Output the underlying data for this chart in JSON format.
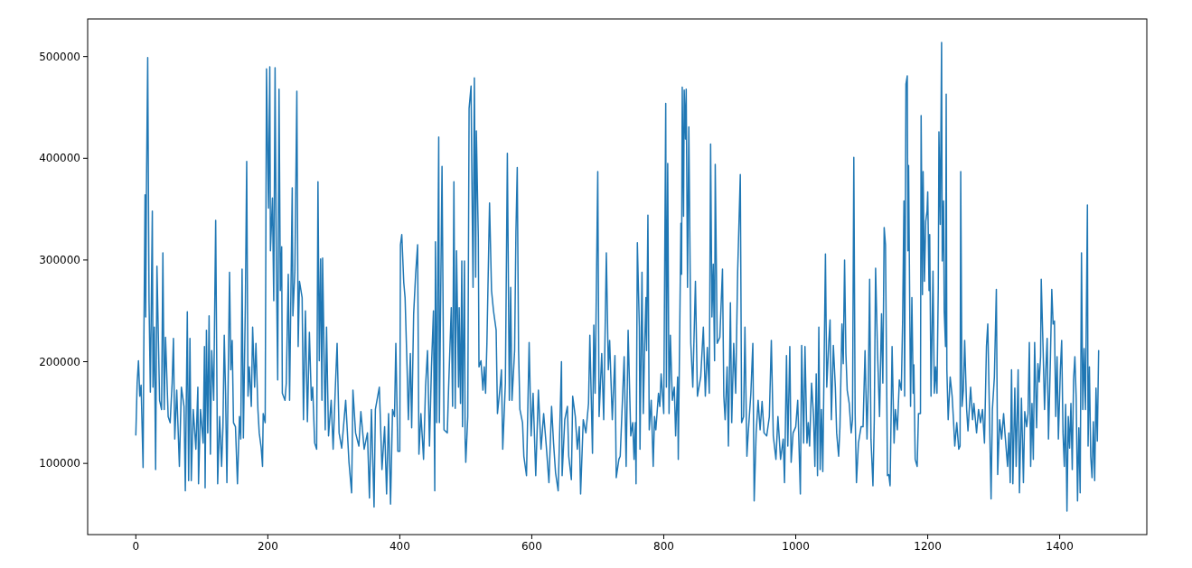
{
  "chart_data": {
    "type": "line",
    "color": "#1f77b4",
    "xlim": [
      -73,
      1532
    ],
    "ylim": [
      30000,
      537000
    ],
    "xticks": [
      0,
      200,
      400,
      600,
      800,
      1000,
      1200,
      1400
    ],
    "yticks": [
      100000,
      200000,
      300000,
      400000,
      500000
    ],
    "x": [
      0,
      2,
      4,
      6,
      8,
      11,
      12,
      14,
      15,
      16,
      18,
      20,
      22,
      25,
      26,
      28,
      30,
      32,
      36,
      39,
      41,
      43,
      45,
      49,
      52,
      55,
      57,
      59,
      62,
      66,
      69,
      73,
      75,
      78,
      80,
      82,
      84,
      87,
      91,
      94,
      95,
      98,
      102,
      104,
      105,
      107,
      109,
      111,
      113,
      115,
      118,
      121,
      124,
      127,
      130,
      132,
      134,
      136,
      138,
      142,
      144,
      146,
      148,
      151,
      154,
      157,
      159,
      161,
      163,
      166,
      168,
      170,
      172,
      175,
      177,
      180,
      182,
      185,
      187,
      190,
      192,
      193,
      196,
      198,
      201,
      203,
      204,
      207,
      209,
      211,
      213,
      215,
      217,
      219,
      221,
      222,
      226,
      228,
      231,
      233,
      237,
      238,
      241,
      244,
      246,
      248,
      252,
      254,
      257,
      260,
      263,
      266,
      268,
      271,
      274,
      276,
      278,
      280,
      282,
      283,
      287,
      289,
      292,
      296,
      299,
      302,
      305,
      308,
      312,
      318,
      323,
      327,
      329,
      333,
      338,
      341,
      346,
      351,
      354,
      357,
      361,
      363,
      369,
      373,
      377,
      380,
      383,
      386,
      389,
      392,
      394,
      397,
      400,
      401,
      403,
      406,
      408,
      411,
      413,
      416,
      418,
      421,
      424,
      427,
      429,
      432,
      436,
      439,
      442,
      445,
      448,
      451,
      453,
      454,
      456,
      459,
      460,
      464,
      467,
      472,
      474,
      478,
      480,
      482,
      484,
      486,
      489,
      490,
      492,
      494,
      495,
      498,
      499,
      500,
      503,
      505,
      508,
      509,
      511,
      513,
      515,
      516,
      519,
      520,
      523,
      526,
      528,
      530,
      532,
      536,
      539,
      542,
      546,
      548,
      552,
      554,
      556,
      560,
      563,
      566,
      568,
      570,
      574,
      576,
      578,
      580,
      582,
      586,
      588,
      592,
      596,
      599,
      602,
      606,
      610,
      614,
      618,
      622,
      626,
      630,
      633,
      636,
      640,
      645,
      646,
      650,
      654,
      656,
      660,
      662,
      666,
      669,
      672,
      674,
      678,
      682,
      686,
      688,
      692,
      694,
      696,
      700,
      702,
      706,
      709,
      713,
      716,
      718,
      722,
      726,
      728,
      732,
      734,
      738,
      740,
      743,
      746,
      750,
      753,
      755,
      757,
      758,
      760,
      763,
      764,
      767,
      769,
      771,
      773,
      774,
      776,
      778,
      781,
      784,
      786,
      788,
      792,
      794,
      796,
      800,
      803,
      804,
      806,
      808,
      810,
      813,
      816,
      818,
      821,
      822,
      826,
      827,
      828,
      830,
      831,
      833,
      834,
      836,
      838,
      841,
      844,
      848,
      851,
      856,
      860,
      863,
      866,
      869,
      871,
      873,
      875,
      877,
      878,
      881,
      885,
      889,
      891,
      893,
      896,
      898,
      901,
      903,
      906,
      909,
      912,
      916,
      918,
      921,
      923,
      926,
      928,
      932,
      935,
      937,
      940,
      943,
      946,
      949,
      952,
      956,
      960,
      963,
      966,
      970,
      973,
      977,
      981,
      983,
      986,
      988,
      991,
      993,
      996,
      1000,
      1003,
      1007,
      1009,
      1012,
      1014,
      1017,
      1019,
      1021,
      1024,
      1027,
      1029,
      1031,
      1033,
      1035,
      1037,
      1039,
      1041,
      1045,
      1047,
      1050,
      1052,
      1054,
      1057,
      1060,
      1062,
      1065,
      1067,
      1070,
      1072,
      1074,
      1076,
      1078,
      1081,
      1084,
      1086,
      1088,
      1090,
      1092,
      1095,
      1099,
      1102,
      1105,
      1108,
      1110,
      1112,
      1114,
      1117,
      1119,
      1121,
      1124,
      1127,
      1130,
      1132,
      1134,
      1136,
      1139,
      1141,
      1143,
      1146,
      1149,
      1151,
      1154,
      1157,
      1160,
      1162,
      1164,
      1165,
      1167,
      1169,
      1170,
      1171,
      1174,
      1176,
      1178,
      1179,
      1181,
      1184,
      1186,
      1189,
      1190,
      1192,
      1193,
      1195,
      1197,
      1199,
      1200,
      1202,
      1203,
      1205,
      1208,
      1210,
      1212,
      1214,
      1216,
      1217,
      1219,
      1221,
      1222,
      1224,
      1225,
      1227,
      1228,
      1229,
      1231,
      1234,
      1237,
      1239,
      1241,
      1244,
      1247,
      1249,
      1250,
      1252,
      1254,
      1256,
      1259,
      1261,
      1265,
      1268,
      1270,
      1274,
      1277,
      1280,
      1283,
      1286,
      1289,
      1291,
      1296,
      1298,
      1301,
      1304,
      1306,
      1309,
      1312,
      1315,
      1317,
      1321,
      1323,
      1325,
      1327,
      1329,
      1332,
      1334,
      1337,
      1339,
      1342,
      1345,
      1347,
      1350,
      1352,
      1354,
      1356,
      1358,
      1360,
      1362,
      1365,
      1367,
      1369,
      1371,
      1372,
      1375,
      1377,
      1379,
      1381,
      1383,
      1386,
      1388,
      1390,
      1392,
      1394,
      1396,
      1398,
      1401,
      1403,
      1405,
      1407,
      1409,
      1411,
      1413,
      1415,
      1417,
      1419,
      1421,
      1423,
      1425,
      1427,
      1429,
      1431,
      1433,
      1435,
      1437,
      1439,
      1442,
      1443,
      1445,
      1447,
      1449,
      1451,
      1453,
      1455,
      1457,
      1459
    ],
    "values": [
      128000,
      179000,
      201000,
      166000,
      177000,
      96000,
      205000,
      364000,
      244000,
      364000,
      499000,
      260000,
      170000,
      348000,
      175000,
      234000,
      94000,
      294000,
      162000,
      153000,
      307000,
      153000,
      224000,
      146000,
      140000,
      179000,
      223000,
      124000,
      172000,
      97000,
      175000,
      156000,
      73000,
      249000,
      83000,
      223000,
      83000,
      153000,
      114000,
      175000,
      80000,
      153000,
      120000,
      215000,
      76000,
      231000,
      130000,
      245000,
      109000,
      211000,
      162000,
      339000,
      80000,
      146000,
      97000,
      136000,
      226000,
      169000,
      81000,
      288000,
      192000,
      221000,
      140000,
      136000,
      80000,
      146000,
      124000,
      291000,
      125000,
      257000,
      397000,
      166000,
      195000,
      156000,
      234000,
      175000,
      218000,
      153000,
      130000,
      115000,
      97000,
      149000,
      140000,
      488000,
      351000,
      490000,
      309000,
      361000,
      260000,
      489000,
      293000,
      182000,
      468000,
      270000,
      313000,
      169000,
      162000,
      179000,
      286000,
      162000,
      371000,
      245000,
      289000,
      466000,
      215000,
      279000,
      263000,
      143000,
      250000,
      141000,
      229000,
      162000,
      175000,
      120000,
      114000,
      377000,
      201000,
      301000,
      162000,
      302000,
      133000,
      234000,
      127000,
      162000,
      114000,
      169000,
      218000,
      130000,
      115000,
      162000,
      101000,
      71000,
      172000,
      130000,
      117000,
      151000,
      114000,
      130000,
      66000,
      153000,
      57000,
      153000,
      175000,
      94000,
      136000,
      70000,
      149000,
      60000,
      153000,
      146000,
      218000,
      112000,
      112000,
      315000,
      325000,
      278000,
      263000,
      195000,
      143000,
      208000,
      135000,
      247000,
      286000,
      315000,
      109000,
      149000,
      104000,
      175000,
      211000,
      117000,
      195000,
      250000,
      73000,
      318000,
      140000,
      421000,
      140000,
      392000,
      133000,
      130000,
      175000,
      253000,
      156000,
      377000,
      154000,
      309000,
      175000,
      253000,
      159000,
      299000,
      136000,
      299000,
      124000,
      101000,
      146000,
      449000,
      471000,
      397000,
      273000,
      479000,
      283000,
      427000,
      322000,
      195000,
      201000,
      172000,
      195000,
      169000,
      218000,
      356000,
      270000,
      250000,
      231000,
      149000,
      175000,
      192000,
      114000,
      179000,
      405000,
      162000,
      273000,
      162000,
      211000,
      328000,
      391000,
      211000,
      153000,
      140000,
      107000,
      88000,
      219000,
      127000,
      169000,
      88000,
      172000,
      114000,
      149000,
      117000,
      81000,
      156000,
      120000,
      91000,
      73000,
      200000,
      88000,
      143000,
      156000,
      107000,
      84000,
      166000,
      146000,
      114000,
      136000,
      70000,
      143000,
      130000,
      159000,
      226000,
      110000,
      236000,
      169000,
      387000,
      146000,
      208000,
      143000,
      307000,
      192000,
      221000,
      143000,
      206000,
      86000,
      104000,
      107000,
      172000,
      205000,
      97000,
      231000,
      127000,
      140000,
      104000,
      140000,
      80000,
      317000,
      234000,
      114000,
      288000,
      149000,
      215000,
      263000,
      211000,
      344000,
      133000,
      162000,
      97000,
      146000,
      133000,
      169000,
      156000,
      188000,
      149000,
      454000,
      175000,
      395000,
      149000,
      226000,
      162000,
      175000,
      127000,
      185000,
      104000,
      336000,
      286000,
      470000,
      343000,
      467000,
      419000,
      468000,
      273000,
      431000,
      218000,
      175000,
      279000,
      166000,
      185000,
      234000,
      166000,
      214000,
      169000,
      414000,
      244000,
      296000,
      201000,
      394000,
      218000,
      224000,
      291000,
      166000,
      143000,
      195000,
      117000,
      258000,
      140000,
      218000,
      169000,
      289000,
      384000,
      140000,
      146000,
      234000,
      107000,
      130000,
      169000,
      218000,
      63000,
      130000,
      162000,
      133000,
      161000,
      130000,
      127000,
      146000,
      221000,
      127000,
      104000,
      146000,
      104000,
      124000,
      81000,
      206000,
      117000,
      215000,
      101000,
      130000,
      136000,
      162000,
      70000,
      216000,
      120000,
      215000,
      120000,
      140000,
      117000,
      179000,
      146000,
      97000,
      188000,
      88000,
      234000,
      94000,
      153000,
      92000,
      306000,
      175000,
      218000,
      241000,
      143000,
      216000,
      175000,
      130000,
      107000,
      136000,
      237000,
      198000,
      300000,
      208000,
      172000,
      159000,
      130000,
      143000,
      401000,
      149000,
      81000,
      120000,
      136000,
      136000,
      211000,
      124000,
      179000,
      281000,
      124000,
      78000,
      143000,
      292000,
      208000,
      146000,
      247000,
      179000,
      332000,
      315000,
      88000,
      89000,
      78000,
      215000,
      120000,
      153000,
      133000,
      182000,
      172000,
      241000,
      358000,
      166000,
      473000,
      481000,
      309000,
      393000,
      156000,
      263000,
      169000,
      197000,
      104000,
      97000,
      149000,
      149000,
      442000,
      266000,
      387000,
      279000,
      338000,
      348000,
      367000,
      270000,
      325000,
      166000,
      289000,
      169000,
      195000,
      169000,
      273000,
      426000,
      335000,
      514000,
      299000,
      358000,
      250000,
      215000,
      463000,
      192000,
      143000,
      185000,
      166000,
      143000,
      117000,
      140000,
      114000,
      117000,
      387000,
      156000,
      172000,
      221000,
      153000,
      132000,
      175000,
      143000,
      159000,
      130000,
      153000,
      140000,
      153000,
      120000,
      215000,
      237000,
      65000,
      153000,
      185000,
      271000,
      89000,
      143000,
      124000,
      149000,
      130000,
      97000,
      130000,
      81000,
      192000,
      80000,
      174000,
      97000,
      192000,
      71000,
      164000,
      81000,
      151000,
      136000,
      149000,
      219000,
      97000,
      159000,
      104000,
      219000,
      135000,
      198000,
      180000,
      205000,
      281000,
      208000,
      153000,
      192000,
      223000,
      124000,
      205000,
      271000,
      237000,
      240000,
      146000,
      205000,
      124000,
      192000,
      221000,
      130000,
      97000,
      158000,
      53000,
      146000,
      115000,
      159000,
      94000,
      182000,
      205000,
      164000,
      63000,
      135000,
      71000,
      307000,
      153000,
      213000,
      153000,
      354000,
      117000,
      195000,
      107000,
      86000,
      141000,
      83000,
      174000,
      122000,
      211000
    ]
  }
}
